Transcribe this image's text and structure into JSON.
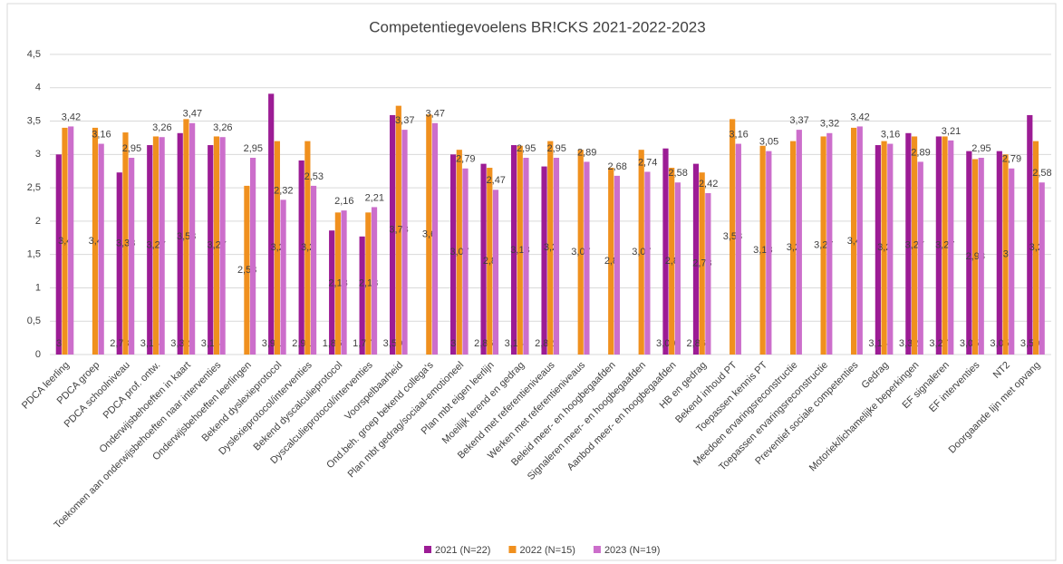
{
  "chart_data": {
    "type": "bar",
    "title": "Competentiegevoelens BR!CKS 2021-2022-2023",
    "categories": [
      "PDCA leerling",
      "PDCA groep",
      "PDCA schoolniveau",
      "PDCA prof. ontw.",
      "Onderwijsbehoeften in kaart",
      "Toekomen aan onderwijsbehoeften naar interventies",
      "Onderwijsbehoeften leerlingen",
      "Bekend dyslexieprotocol",
      "Dyslexieprotocol/interventies",
      "Bekend dyscalculieprotocol",
      "Dyscalculieprotocol/interventies",
      "Voorspelbaarheid",
      "Ond.beh. groep bekend collega's",
      "Plan mbt gedrag/sociaal-emotioneel",
      "Plan mbt eigen leerlijn",
      "Moeilijk lerend en gedrag",
      "Bekend met referentieniveaus",
      "Werken met referentieniveaus",
      "Beleid meer- en hoogbegaafden",
      "Signaleren meer- en hoogbegaafden",
      "Aanbod meer- en hoogbegaafden",
      "HB en gedrag",
      "Bekend inhoud PT",
      "Toepassen kennis PT",
      "Meedoen ervaringsreconstructie",
      "Toepassen ervaringsreconstructie",
      "Preventief sociale competenties",
      "Gedrag",
      "Motoriek/lichamelijke beperkingen",
      "EF signaleren",
      "EF interventies",
      "NT2",
      "Doorgaande lijn met opvang"
    ],
    "series": [
      {
        "name": "2021 (N=22)",
        "color": "#9c1c95",
        "values": [
          3,
          null,
          2.73,
          3.14,
          3.32,
          3.14,
          null,
          3.91,
          2.91,
          1.86,
          1.77,
          3.59,
          null,
          3,
          2.86,
          3.14,
          2.82,
          null,
          null,
          null,
          3.09,
          2.86,
          null,
          null,
          null,
          null,
          null,
          3.14,
          3.32,
          3.27,
          3.05,
          3.05,
          3.59
        ],
        "value_labels": [
          "3",
          null,
          "2,73",
          "3,14",
          "3,32",
          "3,14",
          null,
          "3,91",
          "2,91",
          "1,86",
          "1,77",
          "3,59",
          null,
          "3",
          "2,86",
          "3,14",
          "2,82",
          null,
          null,
          null,
          "3,09",
          "2,86",
          null,
          null,
          null,
          null,
          null,
          "3,14",
          "3,32",
          "3,27",
          "3,05",
          "3,05",
          "3,59"
        ]
      },
      {
        "name": "2022 (N=15)",
        "color": "#f0901e",
        "values": [
          3.4,
          3.4,
          3.33,
          3.27,
          3.53,
          3.27,
          2.53,
          3.2,
          3.2,
          2.13,
          2.13,
          3.73,
          3.6,
          3.07,
          2.8,
          3.13,
          3.2,
          3.07,
          2.8,
          3.07,
          2.8,
          2.73,
          3.53,
          3.13,
          3.2,
          3.27,
          3.4,
          3.2,
          3.27,
          3.27,
          2.93,
          3,
          3.2
        ],
        "value_labels": [
          "3,4",
          "3,4",
          "3,33",
          "3,27",
          "3,53",
          "3,27",
          "2,53",
          "3,2",
          "3,2",
          "2,13",
          "2,13",
          "3,73",
          "3,6",
          "3,07",
          "2,8",
          "3,13",
          "3,2",
          "3,07",
          "2,8",
          "3,07",
          "2,8",
          "2,73",
          "3,53",
          "3,13",
          "3,2",
          "3,27",
          "3,4",
          "3,2",
          "3,27",
          "3,27",
          "2,93",
          "3",
          "3,2"
        ]
      },
      {
        "name": "2023 (N=19)",
        "color": "#cc6ecb",
        "values": [
          3.42,
          3.16,
          2.95,
          3.26,
          3.47,
          3.26,
          2.95,
          2.32,
          2.53,
          2.16,
          2.21,
          3.37,
          3.47,
          2.79,
          2.47,
          2.95,
          2.95,
          2.89,
          2.68,
          2.74,
          2.58,
          2.42,
          3.16,
          3.05,
          3.37,
          3.32,
          3.42,
          3.16,
          2.89,
          3.21,
          2.95,
          2.79,
          2.58
        ],
        "value_labels": [
          "3,42",
          "3,16",
          "2,95",
          "3,26",
          "3,47",
          "3,26",
          "2,95",
          "2,32",
          "2,53",
          "2,16",
          "2,21",
          "3,37",
          "3,47",
          "2,79",
          "2,47",
          "2,95",
          "2,95",
          "2,89",
          "2,68",
          "2,74",
          "2,58",
          "2,42",
          "3,16",
          "3,05",
          "3,37",
          "3,32",
          "3,42",
          "3,16",
          "2,89",
          "3,21",
          "2,95",
          "2,79",
          "2,58"
        ]
      }
    ],
    "ylim": [
      0,
      4.5
    ],
    "yticks": [
      0,
      {
        "value": 0.5,
        "label": "0,5"
      },
      1,
      {
        "value": 1.5,
        "label": "1,5"
      },
      2,
      {
        "value": 2.5,
        "label": "2,5"
      },
      3,
      {
        "value": 3.5,
        "label": "3,5"
      },
      4,
      {
        "value": 4.5,
        "label": "4,5"
      }
    ],
    "grid": true,
    "legend": "bottom"
  }
}
